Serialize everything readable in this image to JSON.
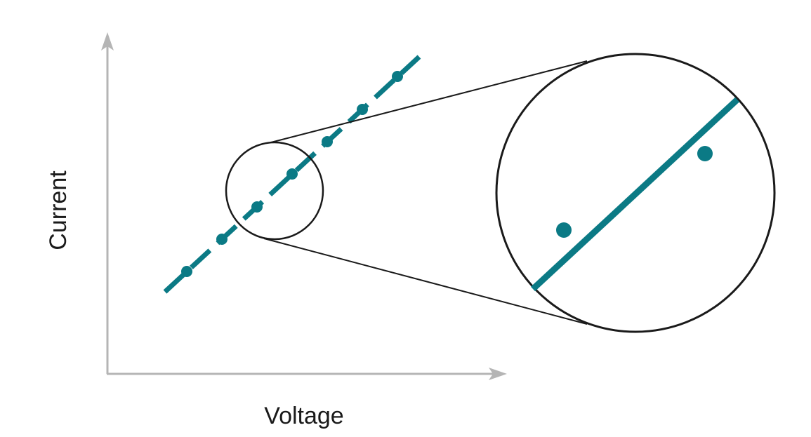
{
  "labels": {
    "x_axis": "Voltage",
    "y_axis": "Current"
  },
  "colors": {
    "accent": "#0b7a85",
    "axis": "#b5b5b5",
    "outline": "#1a1a1a",
    "background": "#ffffff"
  },
  "diagram": {
    "relationship": "linear",
    "data_point_count": 7,
    "magnified_point_count": 2,
    "zoom_callout": true
  }
}
